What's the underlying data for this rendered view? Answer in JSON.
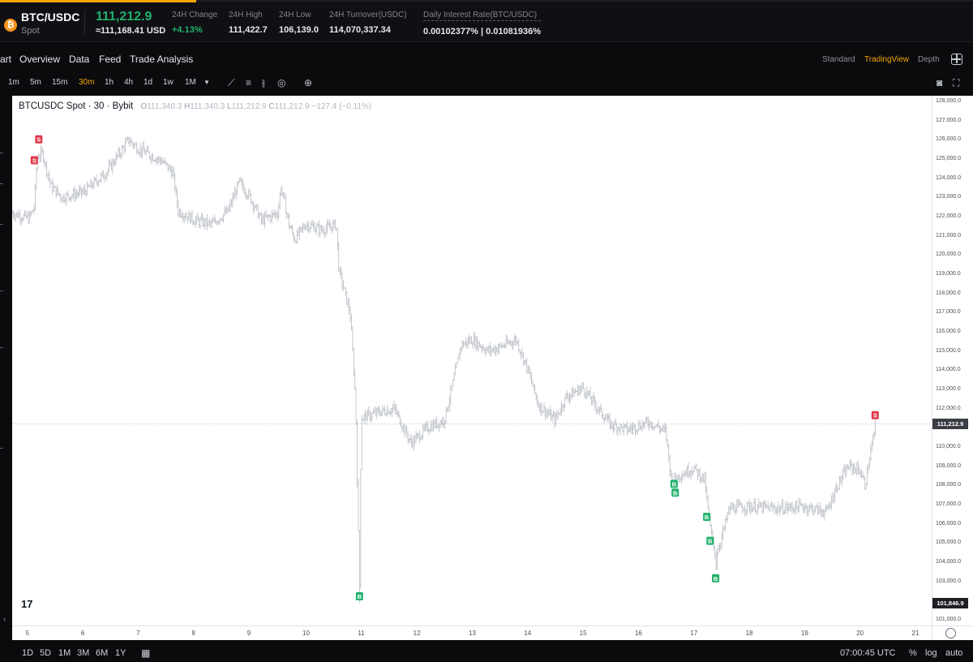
{
  "header": {
    "coin_icon_glyph": "₿",
    "pair": "BTC/USDC",
    "market": "Spot",
    "last_price": "111,212.9",
    "usd_price": "≈111,168.41 USD",
    "stats": [
      {
        "label": "24H Change",
        "value": "+4.13%",
        "positive": true
      },
      {
        "label": "24H High",
        "value": "111,422.7"
      },
      {
        "label": "24H Low",
        "value": "106,139.0"
      },
      {
        "label": "24H Turnover(USDC)",
        "value": "114,070,337.34"
      },
      {
        "label": "Daily Interest Rate(BTC/USDC)",
        "value": "0.00102377% | 0.01081936%"
      }
    ]
  },
  "nav": {
    "items": [
      "art",
      "Overview",
      "Data",
      "Feed",
      "Trade Analysis"
    ],
    "views": [
      "Standard",
      "TradingView",
      "Depth"
    ],
    "active_view": "TradingView"
  },
  "toolbar": {
    "timeframes": [
      "1m",
      "5m",
      "15m",
      "30m",
      "1h",
      "4h",
      "1d",
      "1w",
      "1M"
    ],
    "active_timeframe": "30m",
    "dropdown_glyph": "▼",
    "tools": [
      {
        "name": "indicators-icon",
        "glyph": "⟋"
      },
      {
        "name": "chart-type-icon",
        "glyph": "≡"
      },
      {
        "name": "compare-icon",
        "glyph": "⫲"
      },
      {
        "name": "settings-icon",
        "glyph": "◎"
      },
      {
        "name": "add-icon",
        "glyph": "⊕"
      }
    ],
    "right_tools": [
      {
        "name": "camera-icon",
        "glyph": "◙"
      },
      {
        "name": "fullscreen-icon",
        "glyph": "⛶"
      }
    ]
  },
  "chart": {
    "legend_title": "BTCUSDC Spot · 30 · Bybit",
    "ohlc": {
      "o_label": "O",
      "o": "111,340.3",
      "h_label": "H",
      "h": "111,340.3",
      "l_label": "L",
      "l": "111,212.9",
      "c_label": "C",
      "c": "111,212.9",
      "change": "−127.4 (−0.11%)"
    },
    "logo": "17",
    "current_price_tag": "111,212.9",
    "low_price_tag": "101,846.9",
    "colors": {
      "candle": "#b8bcc4",
      "sell": "#e0394a",
      "buy": "#20b26c",
      "tag_current": "#3a3d44",
      "tag_low": "#1e2023"
    },
    "markers": [
      {
        "type": "S",
        "day": 5.18,
        "price": 126030
      },
      {
        "type": "S",
        "day": 5.1,
        "price": 124940
      },
      {
        "type": "B",
        "day": 10.97,
        "price": 102220
      },
      {
        "type": "B",
        "day": 16.65,
        "price": 108080
      },
      {
        "type": "B",
        "day": 16.67,
        "price": 107620
      },
      {
        "type": "B",
        "day": 17.24,
        "price": 106360
      },
      {
        "type": "B",
        "day": 17.3,
        "price": 105110
      },
      {
        "type": "B",
        "day": 17.4,
        "price": 103160
      },
      {
        "type": "S",
        "day": 20.28,
        "price": 111660
      }
    ],
    "marker_letters": {
      "S": "S",
      "B": "B"
    }
  },
  "chart_data": {
    "type": "ohlc",
    "title": "BTCUSDC Spot · 30 · Bybit",
    "x_unit": "day of month",
    "xlim": [
      4.7,
      21.3
    ],
    "ylim": [
      100700,
      128300
    ],
    "price_ticks": [
      "128,000.0",
      "127,000.0",
      "126,000.0",
      "125,000.0",
      "124,000.0",
      "123,000.0",
      "122,000.0",
      "121,000.0",
      "120,000.0",
      "119,000.0",
      "118,000.0",
      "117,000.0",
      "116,000.0",
      "115,000.0",
      "114,000.0",
      "113,000.0",
      "112,000.0",
      "110,000.0",
      "109,000.0",
      "108,000.0",
      "107,000.0",
      "106,000.0",
      "105,000.0",
      "104,000.0",
      "103,000.0",
      "101,000.0"
    ],
    "price_tick_values": [
      128000,
      127000,
      126000,
      125000,
      124000,
      123000,
      122000,
      121000,
      120000,
      119000,
      118000,
      117000,
      116000,
      115000,
      114000,
      113000,
      112000,
      110000,
      109000,
      108000,
      107000,
      106000,
      105000,
      104000,
      103000,
      101000
    ],
    "x_ticks": [
      "5",
      "6",
      "7",
      "8",
      "9",
      "10",
      "11",
      "12",
      "13",
      "14",
      "15",
      "16",
      "17",
      "18",
      "19",
      "20",
      "21"
    ],
    "x_tick_values": [
      5,
      6,
      7,
      8,
      9,
      10,
      11,
      12,
      13,
      14,
      15,
      16,
      17,
      18,
      19,
      20,
      21
    ],
    "price_path": [
      [
        4.7,
        122200
      ],
      [
        5.0,
        121900
      ],
      [
        5.1,
        122500
      ],
      [
        5.15,
        125100
      ],
      [
        5.25,
        125300
      ],
      [
        5.4,
        123600
      ],
      [
        5.6,
        123000
      ],
      [
        6.0,
        123300
      ],
      [
        6.4,
        124300
      ],
      [
        6.8,
        126000
      ],
      [
        7.0,
        125500
      ],
      [
        7.4,
        124900
      ],
      [
        7.6,
        124300
      ],
      [
        7.7,
        122300
      ],
      [
        8.0,
        121800
      ],
      [
        8.3,
        121600
      ],
      [
        8.6,
        122300
      ],
      [
        8.8,
        123800
      ],
      [
        9.0,
        123000
      ],
      [
        9.2,
        121800
      ],
      [
        9.5,
        122200
      ],
      [
        9.55,
        123600
      ],
      [
        9.7,
        121600
      ],
      [
        9.8,
        120800
      ],
      [
        10.0,
        121600
      ],
      [
        10.3,
        121300
      ],
      [
        10.55,
        121600
      ],
      [
        10.6,
        119200
      ],
      [
        10.8,
        117000
      ],
      [
        10.9,
        112500
      ],
      [
        10.97,
        102600
      ],
      [
        11.0,
        111500
      ],
      [
        11.3,
        111800
      ],
      [
        11.6,
        112000
      ],
      [
        11.9,
        110200
      ],
      [
        12.2,
        111000
      ],
      [
        12.5,
        111400
      ],
      [
        12.65,
        113200
      ],
      [
        12.8,
        115300
      ],
      [
        13.0,
        115600
      ],
      [
        13.3,
        115000
      ],
      [
        13.5,
        115200
      ],
      [
        13.8,
        115600
      ],
      [
        14.0,
        114100
      ],
      [
        14.2,
        112200
      ],
      [
        14.5,
        111400
      ],
      [
        14.7,
        112600
      ],
      [
        15.0,
        113100
      ],
      [
        15.3,
        111900
      ],
      [
        15.5,
        111200
      ],
      [
        15.8,
        110900
      ],
      [
        16.2,
        111300
      ],
      [
        16.5,
        110800
      ],
      [
        16.6,
        108300
      ],
      [
        16.8,
        108600
      ],
      [
        17.0,
        108900
      ],
      [
        17.2,
        108300
      ],
      [
        17.3,
        105800
      ],
      [
        17.4,
        104300
      ],
      [
        17.5,
        105200
      ],
      [
        17.65,
        106800
      ],
      [
        18.0,
        106900
      ],
      [
        18.5,
        106800
      ],
      [
        19.0,
        106900
      ],
      [
        19.4,
        106600
      ],
      [
        19.6,
        108000
      ],
      [
        19.8,
        109000
      ],
      [
        20.0,
        108800
      ],
      [
        20.1,
        108000
      ],
      [
        20.2,
        109800
      ],
      [
        20.3,
        111250
      ]
    ]
  },
  "time_axis": {
    "settings_glyph": "⚙"
  },
  "bottom": {
    "ranges": [
      "1D",
      "5D",
      "1M",
      "3M",
      "6M",
      "1Y"
    ],
    "date_range_glyph": "▦",
    "time": "07:00:45 UTC",
    "percent": "%",
    "log": "log",
    "auto": "auto",
    "collapse_glyph": "‹"
  }
}
